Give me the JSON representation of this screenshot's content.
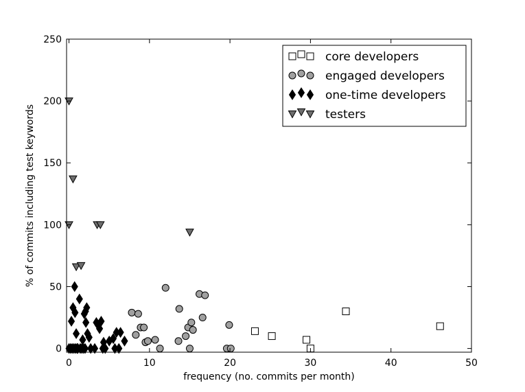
{
  "chart_data": {
    "type": "scatter",
    "title": "",
    "xlabel": "frequency (no. commits per month)",
    "ylabel": "% of commits including test keywords",
    "xlim": [
      -0.3,
      50
    ],
    "ylim": [
      -3,
      250
    ],
    "xticks": [
      0,
      10,
      20,
      30,
      40,
      50
    ],
    "yticks": [
      0,
      50,
      100,
      150,
      200,
      250
    ],
    "grid": false,
    "legend_position": "top-right",
    "series": [
      {
        "name": "core developers",
        "marker": "square",
        "color": "#ffffff",
        "points": [
          [
            23.1,
            14
          ],
          [
            25.2,
            10
          ],
          [
            29.5,
            7
          ],
          [
            30,
            0
          ],
          [
            34.4,
            30
          ],
          [
            46.1,
            18
          ]
        ]
      },
      {
        "name": "engaged developers",
        "marker": "circle",
        "color": "#a0a0a0",
        "points": [
          [
            7.8,
            29
          ],
          [
            8.3,
            11
          ],
          [
            8.6,
            28
          ],
          [
            8.9,
            17
          ],
          [
            9.3,
            17
          ],
          [
            9.5,
            5
          ],
          [
            9.8,
            6
          ],
          [
            10.7,
            7
          ],
          [
            11.3,
            0
          ],
          [
            12,
            49
          ],
          [
            13.6,
            6
          ],
          [
            13.7,
            32
          ],
          [
            14.5,
            10
          ],
          [
            14.8,
            17
          ],
          [
            15,
            0
          ],
          [
            15.2,
            21
          ],
          [
            15.4,
            15
          ],
          [
            16.2,
            44
          ],
          [
            16.6,
            25
          ],
          [
            16.9,
            43
          ],
          [
            19.6,
            0
          ],
          [
            19.9,
            19
          ],
          [
            20.1,
            0
          ]
        ]
      },
      {
        "name": "one-time developers",
        "marker": "diamond",
        "color": "#000000",
        "points": [
          [
            0,
            0
          ],
          [
            0.2,
            0
          ],
          [
            0.3,
            22
          ],
          [
            0.4,
            0
          ],
          [
            0.5,
            33
          ],
          [
            0.6,
            0
          ],
          [
            0.7,
            50
          ],
          [
            0.75,
            29
          ],
          [
            0.8,
            0
          ],
          [
            0.9,
            12
          ],
          [
            1,
            0
          ],
          [
            1.1,
            0
          ],
          [
            1.3,
            40
          ],
          [
            1.4,
            0
          ],
          [
            1.6,
            0
          ],
          [
            1.7,
            7
          ],
          [
            1.8,
            0
          ],
          [
            1.9,
            28
          ],
          [
            2,
            0
          ],
          [
            2.05,
            30
          ],
          [
            2.1,
            21
          ],
          [
            2.2,
            33
          ],
          [
            2.3,
            12
          ],
          [
            2.5,
            9
          ],
          [
            2.7,
            0
          ],
          [
            3.2,
            0
          ],
          [
            3.4,
            21
          ],
          [
            3.6,
            19
          ],
          [
            3.8,
            16
          ],
          [
            4,
            22
          ],
          [
            4.2,
            0
          ],
          [
            4.3,
            5
          ],
          [
            4.5,
            0
          ],
          [
            5,
            6
          ],
          [
            5.5,
            8
          ],
          [
            5.7,
            0
          ],
          [
            5.9,
            13
          ],
          [
            6.2,
            0
          ],
          [
            6.4,
            13
          ],
          [
            6.9,
            6
          ]
        ]
      },
      {
        "name": "testers",
        "marker": "triangle-down",
        "color": "#6e6e6e",
        "points": [
          [
            0,
            200
          ],
          [
            0,
            100
          ],
          [
            0.5,
            137
          ],
          [
            0.9,
            66
          ],
          [
            1.5,
            67
          ],
          [
            3.5,
            100
          ],
          [
            3.9,
            100
          ],
          [
            15,
            94
          ]
        ]
      }
    ]
  }
}
